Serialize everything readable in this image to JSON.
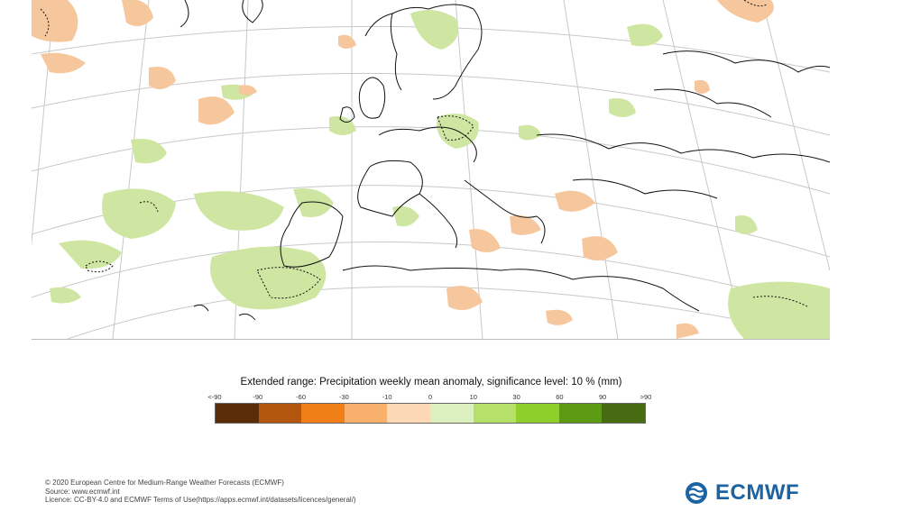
{
  "map": {
    "coast_color": "#111111",
    "grid_color": "#c8c8c8",
    "green_color": "#cfe6a2",
    "orange_color": "#f6c79c"
  },
  "legend": {
    "title": "Extended range: Precipitation weekly mean anomaly, significance level: 10 % (mm)",
    "tick_labels": [
      "<-90",
      "-90",
      "-60",
      "-30",
      "-10",
      "0",
      "10",
      "30",
      "60",
      "90",
      ">90"
    ],
    "colors": [
      "#5a2d08",
      "#b3570e",
      "#f07f17",
      "#f9b06c",
      "#fcd8b6",
      "#dcefbe",
      "#b5e06a",
      "#8ecf2c",
      "#5e9b15",
      "#476a13"
    ]
  },
  "footer": {
    "line1": "© 2020 European Centre for Medium-Range Weather Forecasts (ECMWF)",
    "line2": "Source: www.ecmwf.int",
    "line3": "Licence: CC-BY-4.0 and ECMWF Terms of Use(https://apps.ecmwf.int/datasets/licences/general/)"
  },
  "logo": {
    "text": "ECMWF",
    "color": "#1c63a3"
  }
}
